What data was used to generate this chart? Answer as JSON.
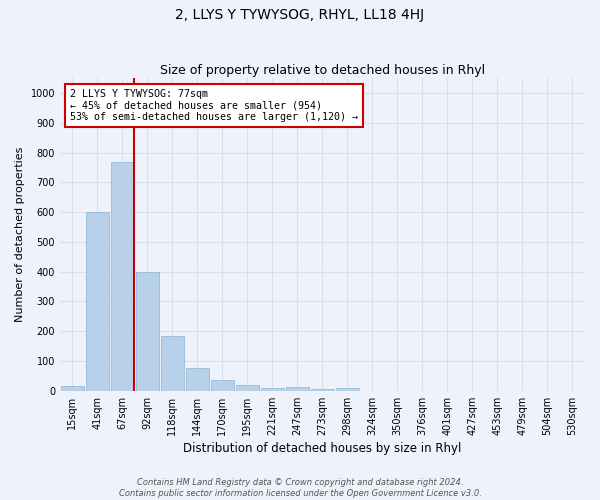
{
  "title": "2, LLYS Y TYWYSOG, RHYL, LL18 4HJ",
  "subtitle": "Size of property relative to detached houses in Rhyl",
  "xlabel": "Distribution of detached houses by size in Rhyl",
  "ylabel": "Number of detached properties",
  "bar_color": "#b8d0e8",
  "bar_edge_color": "#8ab4d4",
  "categories": [
    "15sqm",
    "41sqm",
    "67sqm",
    "92sqm",
    "118sqm",
    "144sqm",
    "170sqm",
    "195sqm",
    "221sqm",
    "247sqm",
    "273sqm",
    "298sqm",
    "324sqm",
    "350sqm",
    "376sqm",
    "401sqm",
    "427sqm",
    "453sqm",
    "479sqm",
    "504sqm",
    "530sqm"
  ],
  "values": [
    15,
    600,
    770,
    400,
    185,
    75,
    35,
    18,
    10,
    13,
    5,
    10,
    0,
    0,
    0,
    0,
    0,
    0,
    0,
    0,
    0
  ],
  "ylim": [
    0,
    1050
  ],
  "yticks": [
    0,
    100,
    200,
    300,
    400,
    500,
    600,
    700,
    800,
    900,
    1000
  ],
  "red_line_x": 2.45,
  "annotation_line1": "2 LLYS Y TYWYSOG: 77sqm",
  "annotation_line2": "← 45% of detached houses are smaller (954)",
  "annotation_line3": "53% of semi-detached houses are larger (1,120) →",
  "annotation_box_color": "#ffffff",
  "annotation_box_edge_color": "#cc0000",
  "footer_line1": "Contains HM Land Registry data © Crown copyright and database right 2024.",
  "footer_line2": "Contains public sector information licensed under the Open Government Licence v3.0.",
  "background_color": "#eef2fa",
  "grid_color": "#d8dff0",
  "title_fontsize": 10,
  "subtitle_fontsize": 9,
  "tick_fontsize": 7,
  "ylabel_fontsize": 8,
  "xlabel_fontsize": 8.5,
  "footer_fontsize": 6
}
